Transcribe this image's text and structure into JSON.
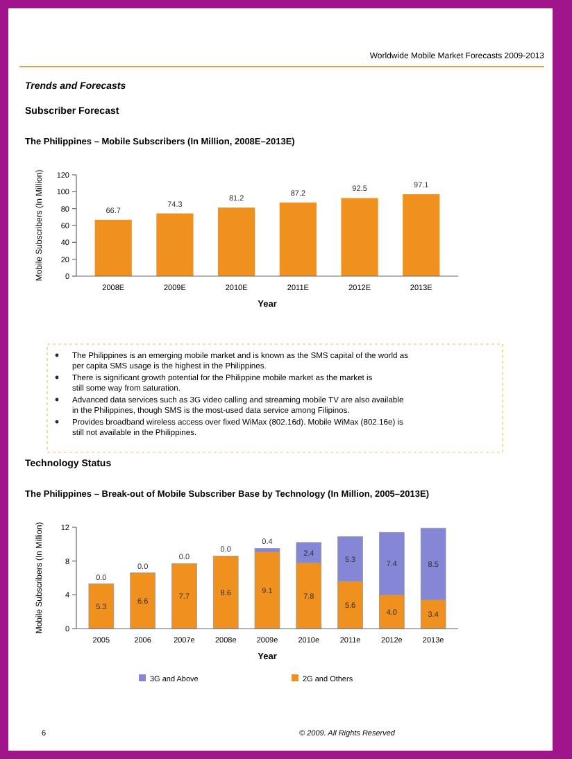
{
  "chart_data": [
    {
      "type": "bar",
      "title": "The Philippines – Mobile Subscribers (In Million, 2008E–2013E)",
      "xlabel": "Year",
      "ylabel": "Mobile Subscribers (In Million)",
      "categories": [
        "2008E",
        "2009E",
        "2010E",
        "2011E",
        "2012E",
        "2013E"
      ],
      "values": [
        66.7,
        74.3,
        81.2,
        87.2,
        92.5,
        97.1
      ],
      "color": "#f0901e",
      "ylim": [
        0,
        120
      ],
      "yticks": [
        0,
        20,
        40,
        60,
        80,
        100,
        120
      ],
      "data_labels": true,
      "grid": false,
      "legend": false,
      "annotations": [
        "Worldwide Mobile Market Forecasts 2009-2013",
        "Trends and Forecasts",
        "Subscriber Forecast",
        "The Philippines is an emerging mobile market and is known as the SMS capital of the world as per capita SMS usage is the highest in the Philippines.",
        "There is significant growth potential for the Philippine mobile market as the market is still some way from saturation.",
        "Advanced data services such as 3G video calling and streaming mobile TV are also available in the Philippines, though SMS is the most-used data service among Filipinos.",
        "Provides broadband wireless access over fixed WiMax (802.16d). Mobile WiMax (802.16e) is still not available in the Philippines."
      ]
    },
    {
      "type": "bar",
      "stacked": true,
      "title": "The Philippines – Break-out of Mobile Subscriber Base by Technology (In Million, 2005–2013E)",
      "xlabel": "Year",
      "ylabel": "Mobile Subscribers (In Million)",
      "categories": [
        "2005",
        "2006",
        "2007e",
        "2008e",
        "2009e",
        "2010e",
        "2011e",
        "2012e",
        "2013e"
      ],
      "series": [
        {
          "name": "2G and Others",
          "color": "#f0901e",
          "values": [
            5.3,
            6.6,
            7.7,
            8.6,
            9.1,
            7.8,
            5.6,
            4,
            3.4
          ],
          "value_labels": [
            "5.3",
            "6.6",
            "7.7",
            "8.6",
            "9.1",
            "7.8",
            "5.6",
            "4.0",
            "3.4"
          ]
        },
        {
          "name": "3G and Above",
          "color": "#8686d6",
          "values": [
            0,
            0,
            0,
            0,
            0.4,
            2.4,
            5.3,
            7.4,
            8.5
          ],
          "value_labels": [
            "0.0",
            "0.0",
            "0.0",
            "0.0",
            "0.4",
            "2.4",
            "5.3",
            "7.4",
            "8.5"
          ]
        }
      ],
      "ylim": [
        0,
        12
      ],
      "yticks": [
        0,
        4,
        8,
        12
      ],
      "grid": false,
      "legend": "bottom",
      "annotations": [
        "Technology Status",
        "© 2009. All Rights Reserved",
        "6"
      ]
    }
  ]
}
